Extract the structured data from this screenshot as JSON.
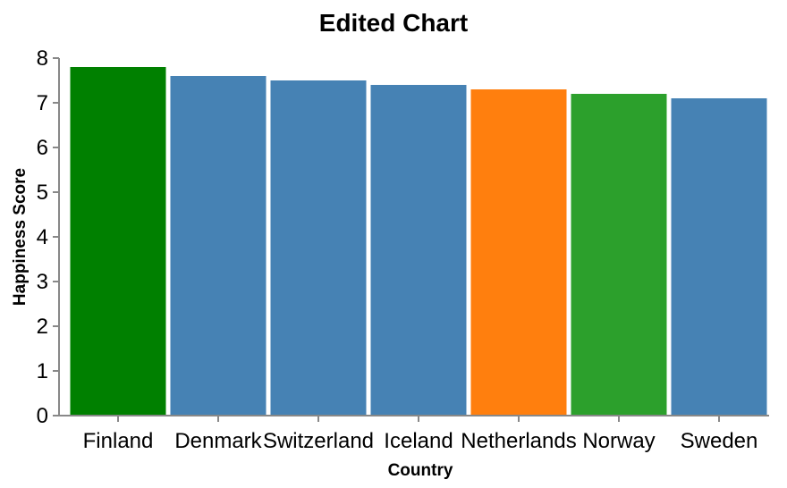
{
  "chart_data": {
    "type": "bar",
    "title": "Edited Chart",
    "xlabel": "Country",
    "ylabel": "Happiness Score",
    "categories": [
      "Finland",
      "Denmark",
      "Switzerland",
      "Iceland",
      "Netherlands",
      "Norway",
      "Sweden"
    ],
    "values": [
      7.8,
      7.6,
      7.5,
      7.4,
      7.3,
      7.2,
      7.1
    ],
    "colors": [
      "#008000",
      "#4682b4",
      "#4682b4",
      "#4682b4",
      "#ff7f0e",
      "#2ca02c",
      "#4682b4"
    ],
    "ylim": [
      0,
      8
    ],
    "yticks": [
      "0",
      "1",
      "2",
      "3",
      "4",
      "5",
      "6",
      "7",
      "8"
    ],
    "grid": false,
    "legend": "none"
  }
}
